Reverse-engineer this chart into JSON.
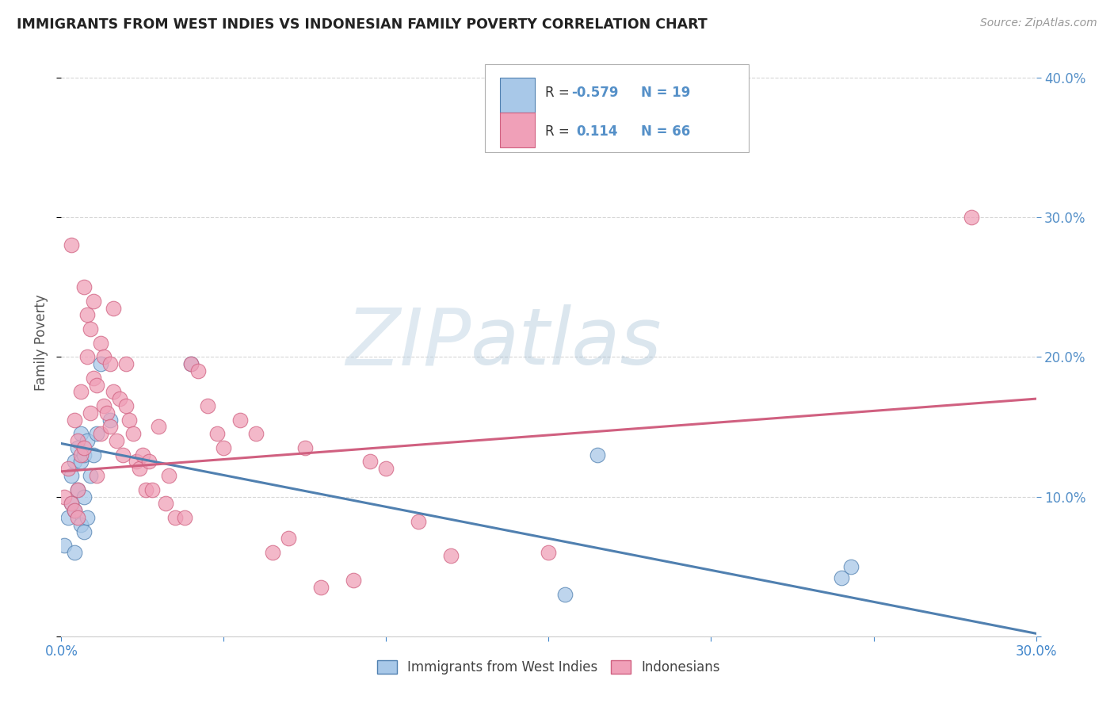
{
  "title": "IMMIGRANTS FROM WEST INDIES VS INDONESIAN FAMILY POVERTY CORRELATION CHART",
  "source": "Source: ZipAtlas.com",
  "ylabel": "Family Poverty",
  "legend_label1": "Immigrants from West Indies",
  "legend_label2": "Indonesians",
  "watermark_zip": "ZIP",
  "watermark_atlas": "atlas",
  "xlim": [
    0.0,
    0.3
  ],
  "ylim": [
    0.0,
    0.42
  ],
  "color_blue": "#a8c8e8",
  "color_pink": "#f0a0b8",
  "line_blue": "#5080b0",
  "line_pink": "#d06080",
  "background": "#ffffff",
  "grid_color": "#cccccc",
  "west_indies_x": [
    0.001,
    0.002,
    0.003,
    0.003,
    0.004,
    0.004,
    0.004,
    0.005,
    0.005,
    0.006,
    0.006,
    0.006,
    0.007,
    0.007,
    0.007,
    0.008,
    0.008,
    0.009,
    0.01,
    0.011,
    0.012,
    0.015,
    0.04,
    0.155,
    0.165,
    0.24,
    0.243
  ],
  "west_indies_y": [
    0.065,
    0.085,
    0.095,
    0.115,
    0.125,
    0.09,
    0.06,
    0.135,
    0.105,
    0.145,
    0.125,
    0.08,
    0.13,
    0.1,
    0.075,
    0.14,
    0.085,
    0.115,
    0.13,
    0.145,
    0.195,
    0.155,
    0.195,
    0.03,
    0.13,
    0.042,
    0.05
  ],
  "indonesian_x": [
    0.001,
    0.002,
    0.003,
    0.003,
    0.004,
    0.004,
    0.005,
    0.005,
    0.005,
    0.006,
    0.006,
    0.007,
    0.007,
    0.008,
    0.008,
    0.009,
    0.009,
    0.01,
    0.01,
    0.011,
    0.011,
    0.012,
    0.012,
    0.013,
    0.013,
    0.014,
    0.015,
    0.015,
    0.016,
    0.016,
    0.017,
    0.018,
    0.019,
    0.02,
    0.02,
    0.021,
    0.022,
    0.023,
    0.024,
    0.025,
    0.026,
    0.027,
    0.028,
    0.03,
    0.032,
    0.033,
    0.035,
    0.038,
    0.04,
    0.042,
    0.045,
    0.048,
    0.05,
    0.055,
    0.06,
    0.065,
    0.07,
    0.075,
    0.08,
    0.09,
    0.095,
    0.1,
    0.11,
    0.12,
    0.15,
    0.28
  ],
  "indonesian_y": [
    0.1,
    0.12,
    0.28,
    0.095,
    0.155,
    0.09,
    0.14,
    0.085,
    0.105,
    0.175,
    0.13,
    0.25,
    0.135,
    0.23,
    0.2,
    0.22,
    0.16,
    0.24,
    0.185,
    0.18,
    0.115,
    0.21,
    0.145,
    0.2,
    0.165,
    0.16,
    0.195,
    0.15,
    0.235,
    0.175,
    0.14,
    0.17,
    0.13,
    0.165,
    0.195,
    0.155,
    0.145,
    0.125,
    0.12,
    0.13,
    0.105,
    0.125,
    0.105,
    0.15,
    0.095,
    0.115,
    0.085,
    0.085,
    0.195,
    0.19,
    0.165,
    0.145,
    0.135,
    0.155,
    0.145,
    0.06,
    0.07,
    0.135,
    0.035,
    0.04,
    0.125,
    0.12,
    0.082,
    0.058,
    0.06,
    0.3
  ],
  "blue_trend_x": [
    0.0,
    0.3
  ],
  "blue_trend_y": [
    0.138,
    0.002
  ],
  "pink_trend_x": [
    0.0,
    0.3
  ],
  "pink_trend_y": [
    0.118,
    0.17
  ]
}
